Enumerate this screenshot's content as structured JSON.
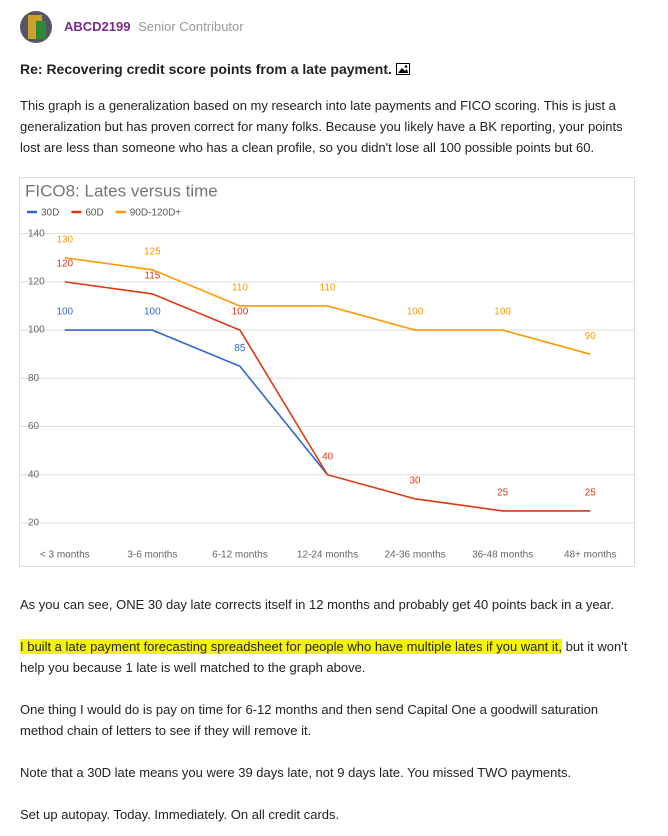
{
  "post": {
    "author": "ABCD2199",
    "rank": "Senior Contributor",
    "title": "Re: Recovering credit score points from a late payment.",
    "intro": "This graph is a generalization based on my research into late payments and FICO scoring.  This is just a generalization but has proven correct for many folks.  Because you likely have a BK reporting, your points lost are less than someone who has a clean profile, so you didn't lose all 100 possible points but 60.",
    "after_chart": "As you can see, ONE 30 day late corrects itself in 12 months and probably get 40 points back in a year.",
    "highlighted": "I built a late payment forecasting spreadsheet for people who have multiple lates if you want it,",
    "highlighted_rest": " but it won't help you because 1 late is well matched to the graph above.",
    "paragraphs": [
      "One thing I would do is pay on time for 6-12 months and then send Capital One a goodwill saturation method chain of letters to see if they will remove it.",
      "Note that a 30D late means you were 39 days late, not 9 days late.  You missed TWO payments.",
      "Set up autopay.  Today.  Immediately.  On all credit cards."
    ]
  },
  "chart_data": {
    "type": "line",
    "title": "FICO8: Lates versus time",
    "categories": [
      "< 3 months",
      "3-6 months",
      "6-12 months",
      "12-24 months",
      "24-36 months",
      "36-48 months",
      "48+ months"
    ],
    "series": [
      {
        "name": "30D",
        "color": "#3366cc",
        "values": [
          100,
          100,
          85,
          40,
          null,
          null,
          null
        ],
        "value_labels": [
          "100",
          "100",
          "85",
          null,
          null,
          null,
          null
        ]
      },
      {
        "name": "60D",
        "color": "#dc3912",
        "values": [
          120,
          115,
          100,
          40,
          30,
          25,
          25
        ]
      },
      {
        "name": "90D-120D+",
        "color": "#ff9900",
        "values": [
          130,
          125,
          110,
          110,
          100,
          100,
          90
        ]
      }
    ],
    "ylim": [
      15,
      144
    ],
    "yticks": [
      20,
      40,
      60,
      80,
      100,
      120,
      140
    ],
    "grid": true
  }
}
